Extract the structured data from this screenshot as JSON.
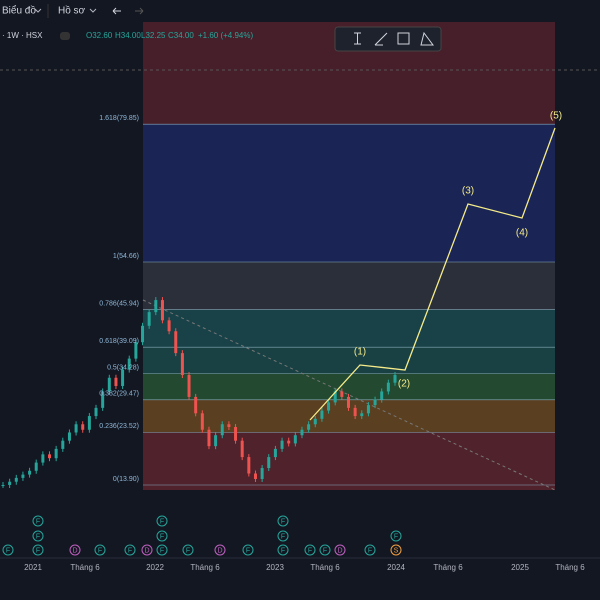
{
  "toolbar": {
    "chart_menu": "Biểu đồ",
    "profile_menu": "Hồ sơ"
  },
  "symbol": {
    "name": "· 1W · HSX",
    "open": "O32.60",
    "high": "H34.00",
    "low": "L32.25",
    "close": "C34.00",
    "change": "+1.60 (+4.94%)"
  },
  "fib_levels": [
    {
      "ratio": 0,
      "price": 13.9,
      "label": "0(13.90)"
    },
    {
      "ratio": 0.236,
      "price": 23.52,
      "label": "0.236(23.52)"
    },
    {
      "ratio": 0.382,
      "price": 29.47,
      "label": "0.382(29.47)"
    },
    {
      "ratio": 0.5,
      "price": 34.28,
      "label": "0.5(34.28)"
    },
    {
      "ratio": 0.618,
      "price": 39.09,
      "label": "0.618(39.09)"
    },
    {
      "ratio": 0.786,
      "price": 45.94,
      "label": "0.786(45.94)"
    },
    {
      "ratio": 1,
      "price": 54.66,
      "label": "1(54.66)"
    },
    {
      "ratio": 1.618,
      "price": 79.85,
      "label": "1.618(79.85)"
    }
  ],
  "waves": [
    "(1)",
    "(2)",
    "(3)",
    "(4)",
    "(5)"
  ],
  "time_axis": [
    "2021",
    "Tháng 6",
    "2022",
    "Tháng 6",
    "2023",
    "Tháng 6",
    "2024",
    "Tháng 6",
    "2025",
    "Tháng 6"
  ],
  "prices": [
    13.9,
    14.5,
    15.2,
    15.8,
    16.5,
    18,
    19.5,
    18.8,
    20.5,
    22,
    23.5,
    25,
    24,
    26.5,
    28,
    31,
    33.5,
    32,
    35,
    37,
    40,
    43,
    45.5,
    47.7,
    44,
    42,
    38,
    34,
    30,
    27,
    24,
    21,
    23,
    25,
    24.5,
    22,
    19,
    16,
    15,
    17,
    19,
    20.5,
    22,
    21.5,
    23,
    24,
    25,
    26,
    27.5,
    29,
    31,
    30,
    28,
    26.5,
    27,
    28.5,
    29.5,
    31,
    32.6,
    34
  ],
  "events": [
    "F",
    "F",
    "F",
    "F",
    "D",
    "F",
    "F",
    "D",
    "F",
    "F",
    "F",
    "F",
    "D",
    "F",
    "F",
    "F",
    "F",
    "D",
    "F",
    "S",
    "F",
    "F",
    "F"
  ]
}
